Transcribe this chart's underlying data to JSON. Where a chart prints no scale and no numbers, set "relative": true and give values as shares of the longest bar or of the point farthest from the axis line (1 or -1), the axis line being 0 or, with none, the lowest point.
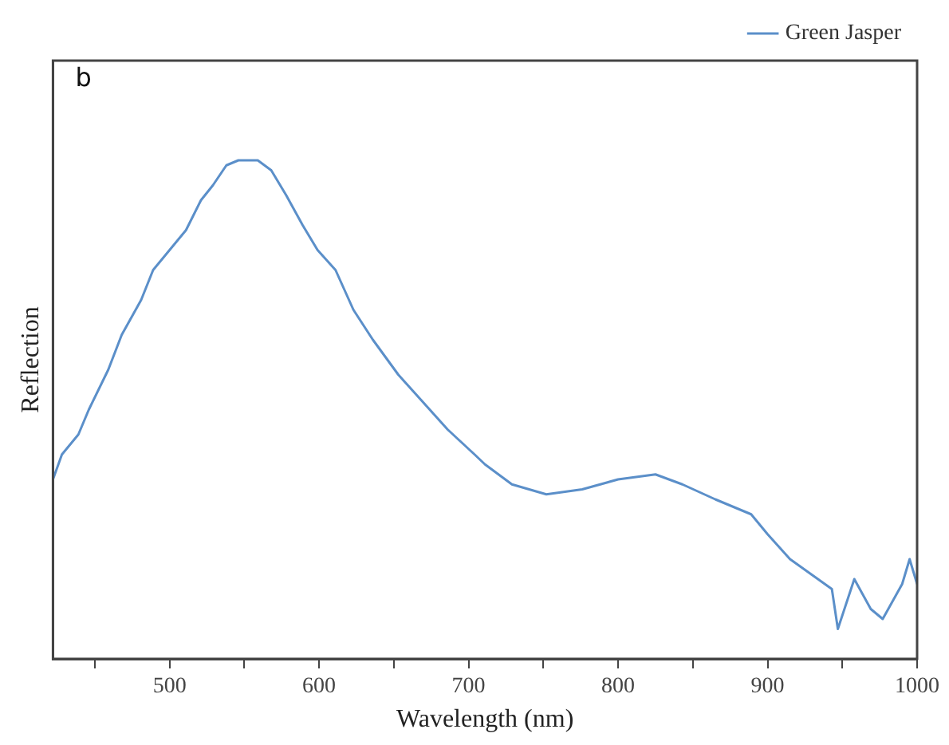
{
  "chart_data": {
    "type": "line",
    "relative": true,
    "xlabel": "Wavelength (nm)",
    "ylabel": "Reflection",
    "annotations": [
      "b"
    ],
    "xlim": [
      422,
      1000
    ],
    "xticks": [
      {
        "value": 450,
        "label": null
      },
      500,
      {
        "value": 550,
        "label": null
      },
      600,
      {
        "value": 650,
        "label": null
      },
      700,
      {
        "value": 750,
        "label": null
      },
      800,
      {
        "value": 850,
        "label": null
      },
      900,
      {
        "value": 950,
        "label": null
      },
      1000
    ],
    "legend": "top right",
    "grid": false,
    "marker": "none",
    "line_style": "solid",
    "series": [
      {
        "name": "Green Jasper",
        "color": "#5b8fc9",
        "x": [
          422,
          428,
          439,
          446,
          459,
          468,
          481,
          489,
          500,
          511,
          521,
          529,
          538,
          546,
          559,
          568,
          578,
          589,
          599,
          611,
          623,
          636,
          653,
          668,
          686,
          704,
          711,
          729,
          752,
          776,
          800,
          825,
          843,
          865,
          889,
          900,
          915,
          929,
          943,
          947,
          958,
          969,
          977,
          990,
          995,
          1000
        ],
        "values": [
          0.36,
          0.41,
          0.45,
          0.5,
          0.58,
          0.65,
          0.72,
          0.78,
          0.82,
          0.86,
          0.92,
          0.95,
          0.99,
          1.0,
          1.0,
          0.98,
          0.93,
          0.87,
          0.82,
          0.78,
          0.7,
          0.64,
          0.57,
          0.52,
          0.46,
          0.41,
          0.39,
          0.35,
          0.33,
          0.34,
          0.36,
          0.37,
          0.35,
          0.32,
          0.29,
          0.25,
          0.2,
          0.17,
          0.14,
          0.06,
          0.16,
          0.1,
          0.08,
          0.15,
          0.2,
          0.15
        ]
      }
    ]
  }
}
